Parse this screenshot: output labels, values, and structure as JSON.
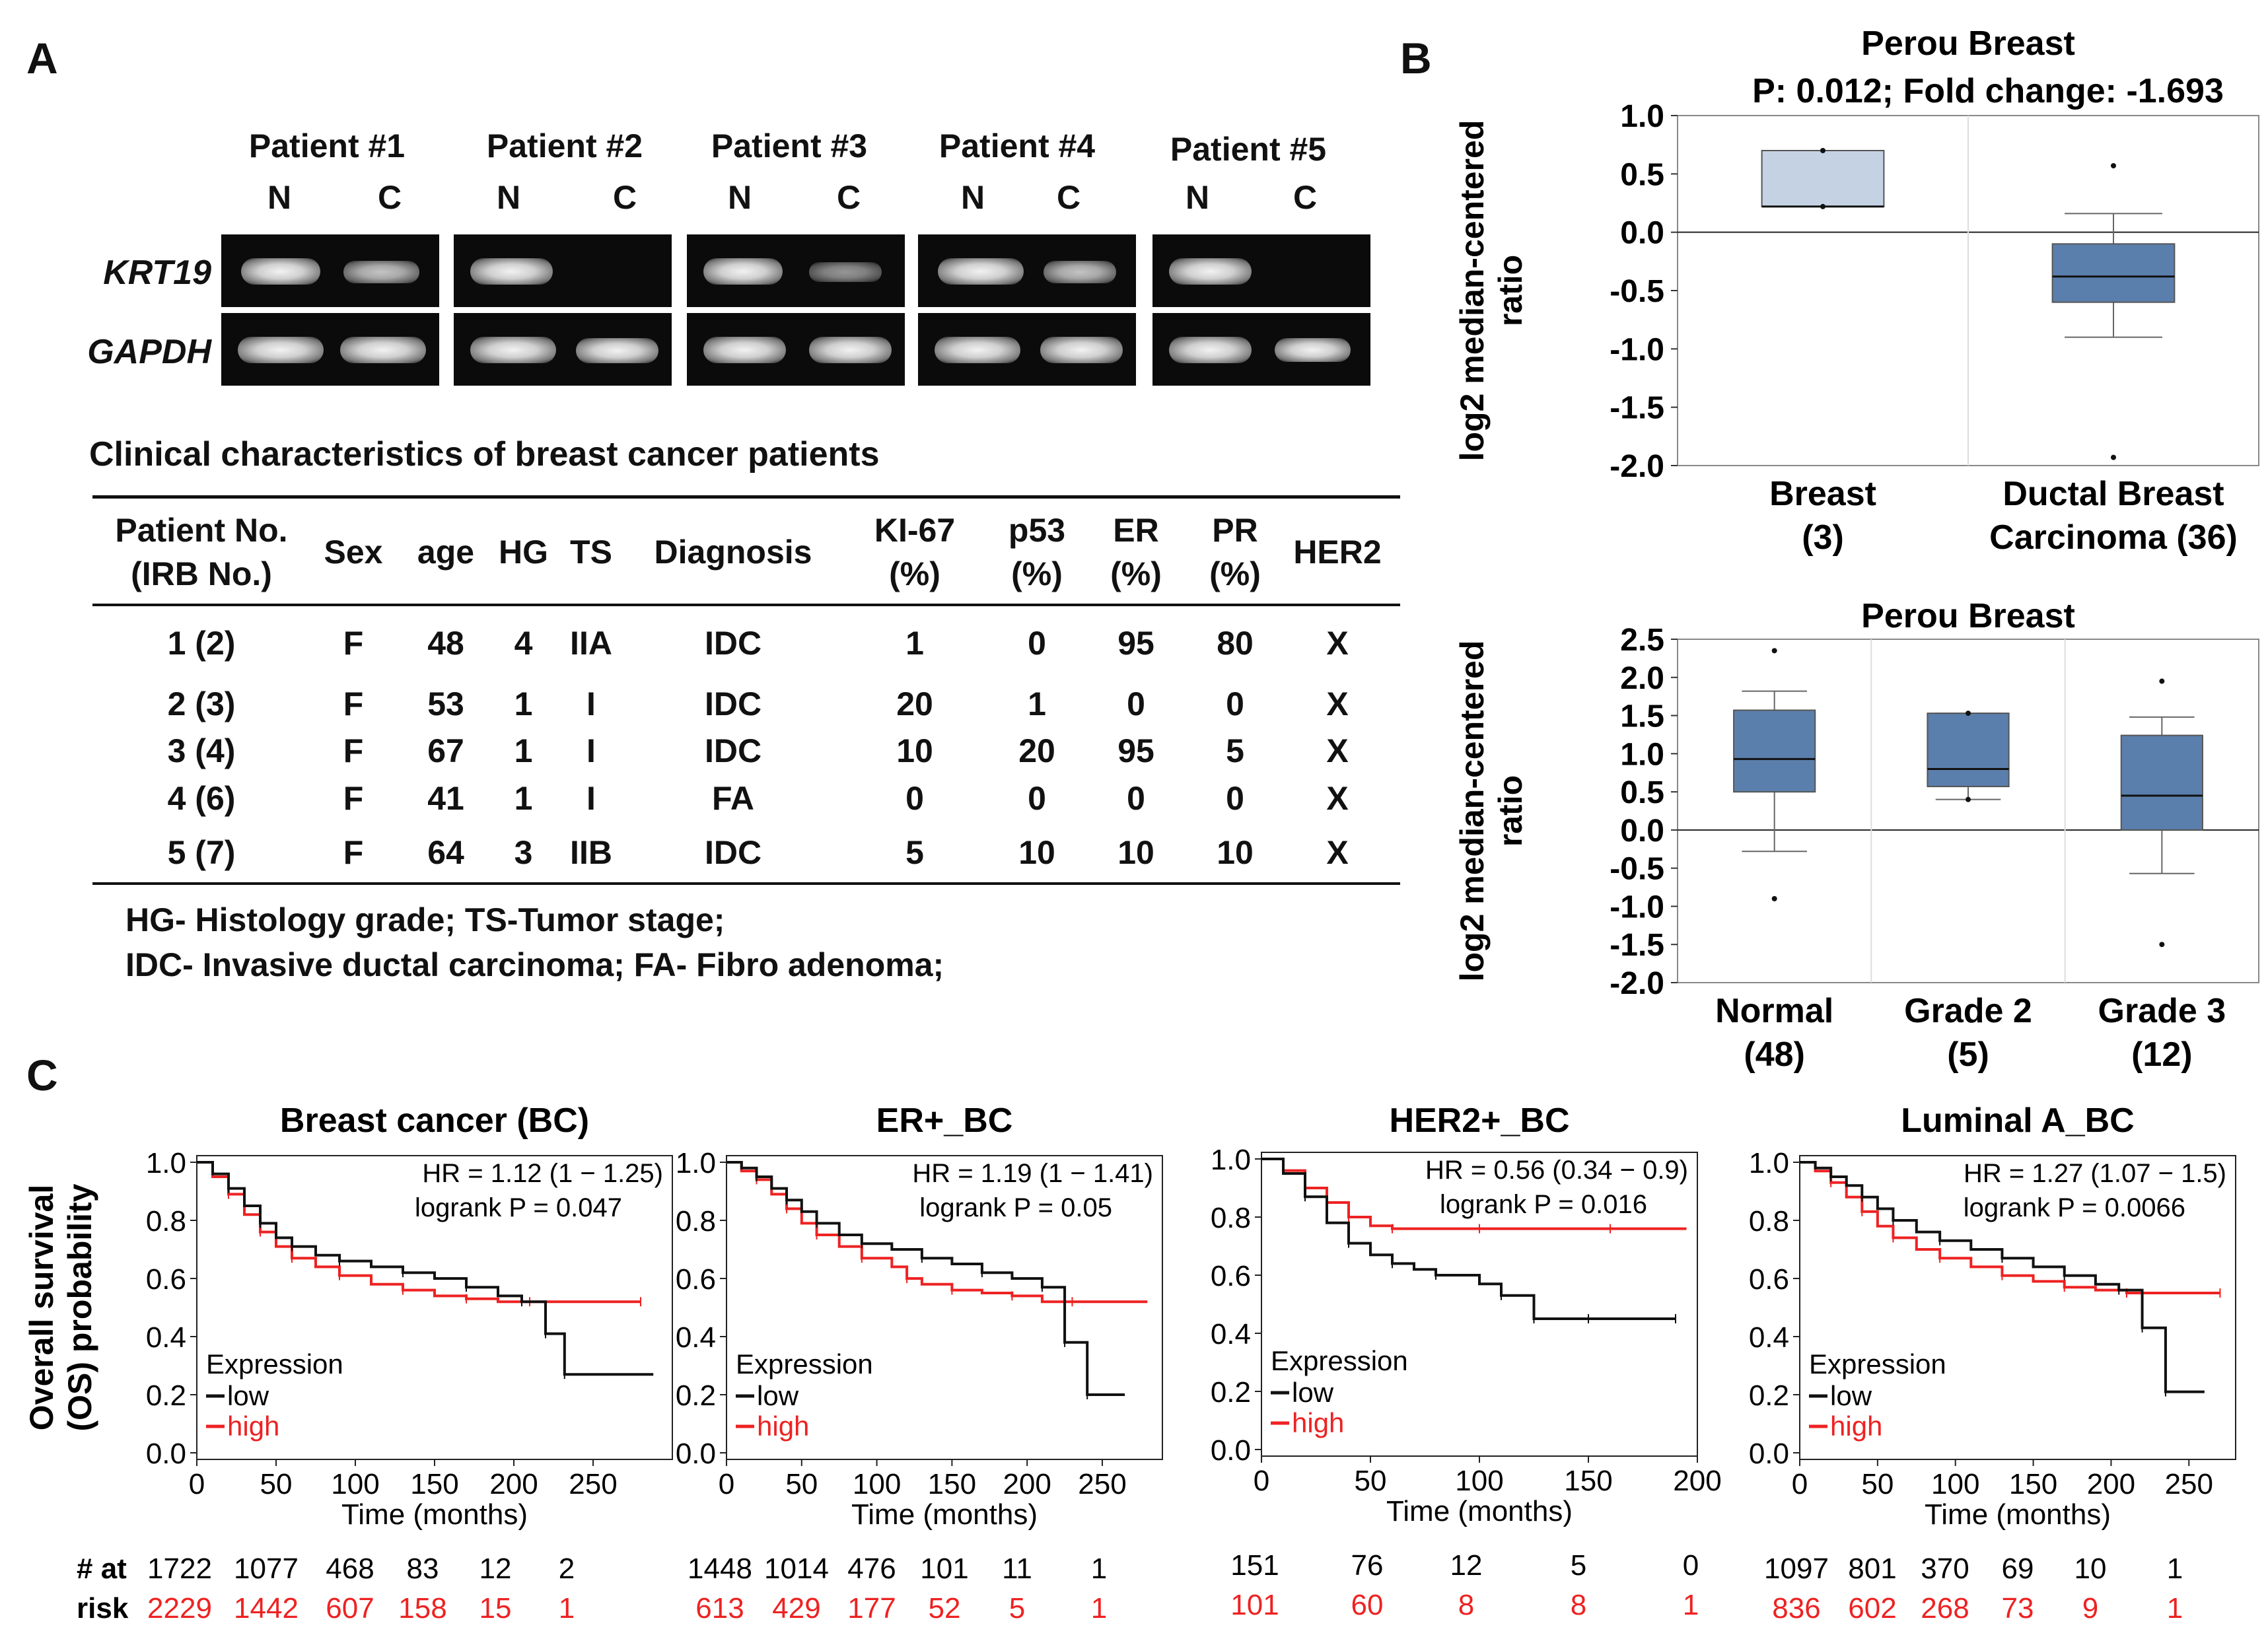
{
  "panel_a": {
    "letter": "A",
    "patients": [
      {
        "label": "Patient #1",
        "n": "N",
        "c": "C"
      },
      {
        "label": "Patient #2",
        "n": "N",
        "c": "C"
      },
      {
        "label": "Patient #3",
        "n": "N",
        "c": "C"
      },
      {
        "label": "Patient #4",
        "n": "N",
        "c": "C"
      },
      {
        "label": "Patient #5",
        "n": "N",
        "c": "C"
      }
    ],
    "genes": [
      "KRT19",
      "GAPDH"
    ],
    "table_title": "Clinical characteristics of breast cancer patients",
    "headers": [
      {
        "l1": "Patient No.",
        "l2": "(IRB No.)"
      },
      {
        "l1": "Sex",
        "l2": ""
      },
      {
        "l1": "age",
        "l2": ""
      },
      {
        "l1": "HG",
        "l2": ""
      },
      {
        "l1": "TS",
        "l2": ""
      },
      {
        "l1": "Diagnosis",
        "l2": ""
      },
      {
        "l1": "KI-67",
        "l2": "(%)"
      },
      {
        "l1": "p53",
        "l2": "(%)"
      },
      {
        "l1": "ER",
        "l2": "(%)"
      },
      {
        "l1": "PR",
        "l2": "(%)"
      },
      {
        "l1": "HER2",
        "l2": ""
      }
    ],
    "rows": [
      [
        "1 (2)",
        "F",
        "48",
        "4",
        "IIA",
        "IDC",
        "1",
        "0",
        "95",
        "80",
        "X"
      ],
      [
        "2 (3)",
        "F",
        "53",
        "1",
        "I",
        "IDC",
        "20",
        "1",
        "0",
        "0",
        "X"
      ],
      [
        "3 (4)",
        "F",
        "67",
        "1",
        "I",
        "IDC",
        "10",
        "20",
        "95",
        "5",
        "X"
      ],
      [
        "4 (6)",
        "F",
        "41",
        "1",
        "I",
        "FA",
        "0",
        "0",
        "0",
        "0",
        "X"
      ],
      [
        "5 (7)",
        "F",
        "64",
        "3",
        "IIB",
        "IDC",
        "5",
        "10",
        "10",
        "10",
        "X"
      ]
    ],
    "footnote1": "HG- Histology grade; TS-Tumor stage;",
    "footnote2": "IDC- Invasive ductal carcinoma; FA- Fibro adenoma;"
  },
  "panel_b": {
    "letter": "B",
    "colors": {
      "light_box": "#c4d2e4",
      "dark_box": "#5b7fac"
    },
    "chart_data": [
      {
        "type": "box",
        "title": "Perou Breast",
        "subtitle": "P: 0.012; Fold change: -1.693",
        "ylabel_line1": "log2 median-centered",
        "ylabel_line2": "ratio",
        "ylim": [
          -2.0,
          1.0
        ],
        "yticks": [
          "1.0",
          "0.5",
          "0.0",
          "-0.5",
          "-1.0",
          "-1.5",
          "-2.0"
        ],
        "groups": [
          {
            "label1": "Breast",
            "label2": "(3)",
            "q1": 0.22,
            "median": 0.22,
            "q3": 0.7,
            "whisker_low": 0.22,
            "whisker_high": 0.7,
            "outliers": [
              0.7,
              0.22
            ]
          },
          {
            "label1": "Ductal Breast",
            "label2": "Carcinoma (36)",
            "q1": -0.6,
            "median": -0.38,
            "q3": -0.1,
            "whisker_low": -0.9,
            "whisker_high": 0.16,
            "outliers": [
              0.57,
              -1.93
            ]
          }
        ]
      },
      {
        "type": "box",
        "title": "Perou Breast",
        "ylabel_line1": "log2 median-centered",
        "ylabel_line2": "ratio",
        "ylim": [
          -2.0,
          2.5
        ],
        "yticks": [
          "2.5",
          "2.0",
          "1.5",
          "1.0",
          "0.5",
          "0.0",
          "-0.5",
          "-1.0",
          "-1.5",
          "-2.0"
        ],
        "groups": [
          {
            "label1": "Normal",
            "label2": "(48)",
            "q1": 0.5,
            "median": 0.93,
            "q3": 1.57,
            "whisker_low": -0.28,
            "whisker_high": 1.82,
            "outliers": [
              2.35,
              -0.9
            ]
          },
          {
            "label1": "Grade 2",
            "label2": "(5)",
            "q1": 0.57,
            "median": 0.8,
            "q3": 1.53,
            "whisker_low": 0.4,
            "whisker_high": 1.53,
            "outliers": [
              1.53,
              0.4
            ]
          },
          {
            "label1": "Grade 3",
            "label2": "(12)",
            "q1": 0.0,
            "median": 0.45,
            "q3": 1.24,
            "whisker_low": -0.57,
            "whisker_high": 1.48,
            "outliers": [
              1.95,
              -1.5
            ]
          }
        ]
      }
    ]
  },
  "panel_c": {
    "letter": "C",
    "ylabel_line1": "Overall survival",
    "ylabel_line2": "(OS) probability",
    "xlabel": "Time (months)",
    "legend_title": "Expression",
    "legend_low": "low",
    "legend_high": "high",
    "risk_label1": "# at",
    "risk_label2": "risk",
    "colors": {
      "low": "#111111",
      "high": "#ee2222"
    },
    "chart_data": [
      {
        "type": "line",
        "title": "Breast cancer (BC)",
        "hr": "HR = 1.12 (1 − 1.25)",
        "logrank": "logrank P = 0.047",
        "xlim": [
          0,
          300
        ],
        "xticks": [
          "0",
          "50",
          "100",
          "150",
          "200",
          "250"
        ],
        "yticks": [
          "1.0",
          "0.8",
          "0.6",
          "0.4",
          "0.2",
          "0.0"
        ],
        "low": {
          "t": [
            0,
            10,
            20,
            30,
            40,
            50,
            60,
            75,
            90,
            110,
            130,
            150,
            170,
            190,
            205,
            215,
            220,
            230,
            232,
            288
          ],
          "s": [
            1.0,
            0.96,
            0.91,
            0.85,
            0.79,
            0.74,
            0.71,
            0.68,
            0.66,
            0.64,
            0.62,
            0.6,
            0.57,
            0.54,
            0.52,
            0.52,
            0.41,
            0.41,
            0.27,
            0.27
          ]
        },
        "high": {
          "t": [
            0,
            10,
            20,
            30,
            40,
            50,
            60,
            75,
            90,
            110,
            130,
            150,
            170,
            190,
            210,
            230,
            280
          ],
          "s": [
            1.0,
            0.95,
            0.89,
            0.82,
            0.76,
            0.71,
            0.67,
            0.64,
            0.61,
            0.58,
            0.56,
            0.54,
            0.53,
            0.52,
            0.52,
            0.52,
            0.52
          ]
        },
        "risk_low": [
          "1722",
          "1077",
          "468",
          "83",
          "12",
          "2"
        ],
        "risk_high": [
          "2229",
          "1442",
          "607",
          "158",
          "15",
          "1"
        ]
      },
      {
        "type": "line",
        "title": "ER+_BC",
        "hr": "HR = 1.19 (1 − 1.41)",
        "logrank": "logrank P = 0.05",
        "xlim": [
          0,
          290
        ],
        "xticks": [
          "0",
          "50",
          "100",
          "150",
          "200",
          "250"
        ],
        "yticks": [
          "1.0",
          "0.8",
          "0.6",
          "0.4",
          "0.2",
          "0.0"
        ],
        "low": {
          "t": [
            0,
            10,
            20,
            30,
            40,
            50,
            60,
            75,
            90,
            110,
            130,
            150,
            170,
            190,
            210,
            220,
            225,
            232,
            240,
            265
          ],
          "s": [
            1.0,
            0.98,
            0.95,
            0.91,
            0.87,
            0.83,
            0.79,
            0.75,
            0.72,
            0.7,
            0.67,
            0.65,
            0.62,
            0.6,
            0.57,
            0.57,
            0.38,
            0.38,
            0.2,
            0.2
          ]
        },
        "high": {
          "t": [
            0,
            10,
            20,
            30,
            40,
            50,
            60,
            75,
            90,
            110,
            120,
            130,
            150,
            170,
            190,
            210,
            230,
            280
          ],
          "s": [
            1.0,
            0.97,
            0.94,
            0.89,
            0.84,
            0.79,
            0.75,
            0.71,
            0.67,
            0.64,
            0.6,
            0.58,
            0.56,
            0.55,
            0.54,
            0.52,
            0.52,
            0.52
          ]
        },
        "risk_low": [
          "1448",
          "1014",
          "476",
          "101",
          "11",
          "1"
        ],
        "risk_high": [
          "613",
          "429",
          "177",
          "52",
          "5",
          "1"
        ]
      },
      {
        "type": "line",
        "title": "HER2+_BC",
        "hr": "HR = 0.56 (0.34 − 0.9)",
        "logrank": "logrank P = 0.016",
        "xlim": [
          0,
          200
        ],
        "xticks": [
          "0",
          "50",
          "100",
          "150",
          "200"
        ],
        "yticks": [
          "1.0",
          "0.8",
          "0.6",
          "0.4",
          "0.2",
          "0.0"
        ],
        "low": {
          "t": [
            0,
            10,
            20,
            30,
            40,
            50,
            60,
            70,
            80,
            100,
            110,
            120,
            125,
            135,
            150,
            170,
            190
          ],
          "s": [
            1.0,
            0.95,
            0.87,
            0.78,
            0.71,
            0.67,
            0.64,
            0.62,
            0.6,
            0.57,
            0.53,
            0.53,
            0.45,
            0.45,
            0.45,
            0.45,
            0.45
          ]
        },
        "high": {
          "t": [
            0,
            10,
            20,
            30,
            40,
            50,
            60,
            80,
            100,
            130,
            160,
            195
          ],
          "s": [
            1.0,
            0.96,
            0.9,
            0.85,
            0.8,
            0.77,
            0.76,
            0.76,
            0.76,
            0.76,
            0.76,
            0.76
          ]
        },
        "risk_low": [
          "151",
          "76",
          "12",
          "5",
          "0"
        ],
        "risk_high": [
          "101",
          "60",
          "8",
          "8",
          "1"
        ]
      },
      {
        "type": "line",
        "title": "Luminal A_BC",
        "hr": "HR = 1.27 (1.07 − 1.5)",
        "logrank": "logrank P = 0.0066",
        "xlim": [
          0,
          280
        ],
        "xticks": [
          "0",
          "50",
          "100",
          "150",
          "200",
          "250"
        ],
        "yticks": [
          "1.0",
          "0.8",
          "0.6",
          "0.4",
          "0.2",
          "0.0"
        ],
        "low": {
          "t": [
            0,
            10,
            20,
            30,
            40,
            50,
            60,
            75,
            90,
            110,
            130,
            150,
            170,
            190,
            205,
            215,
            220,
            230,
            235,
            260
          ],
          "s": [
            1.0,
            0.98,
            0.95,
            0.92,
            0.88,
            0.84,
            0.8,
            0.76,
            0.73,
            0.7,
            0.67,
            0.64,
            0.61,
            0.58,
            0.56,
            0.56,
            0.43,
            0.43,
            0.21,
            0.21
          ]
        },
        "high": {
          "t": [
            0,
            10,
            20,
            30,
            40,
            50,
            60,
            75,
            90,
            110,
            130,
            150,
            170,
            190,
            210,
            240,
            270
          ],
          "s": [
            1.0,
            0.97,
            0.93,
            0.88,
            0.83,
            0.78,
            0.74,
            0.7,
            0.67,
            0.64,
            0.61,
            0.59,
            0.57,
            0.56,
            0.55,
            0.55,
            0.55
          ]
        },
        "risk_low": [
          "1097",
          "801",
          "370",
          "69",
          "10",
          "1"
        ],
        "risk_high": [
          "836",
          "602",
          "268",
          "73",
          "9",
          "1"
        ]
      }
    ]
  }
}
